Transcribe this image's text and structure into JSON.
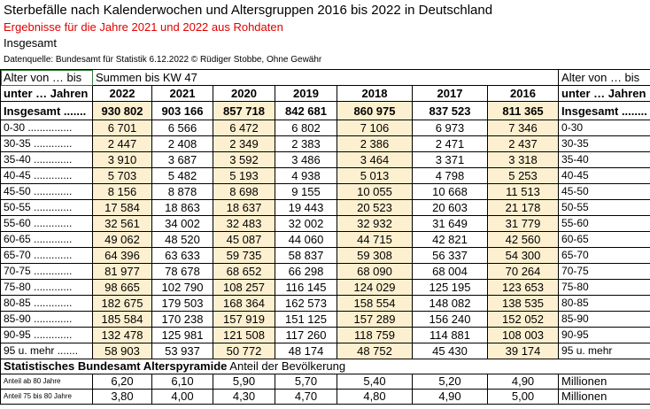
{
  "header": {
    "title": "Sterbefälle nach Kalenderwochen und Altersgruppen 2016 bis 2022 in Deutschland",
    "subtitle": "Ergebnisse für die Jahre 2021 und 2022 aus Rohdaten",
    "scope": "Insgesamt",
    "source": "Datenquelle: Bundesamt für Statistik 6.12.2022 © Rüdiger Stobbe, Ohne Gewähr"
  },
  "table": {
    "left_header": [
      "Alter von … bis",
      "unter … Jahren"
    ],
    "span_header": "Summen bis KW 47",
    "right_header": [
      "Alter von … bis",
      "unter … Jahren"
    ],
    "years": [
      "2022",
      "2021",
      "2020",
      "2019",
      "2018",
      "2017",
      "2016"
    ],
    "total_label": "Insgesamt .......",
    "right_total_label": "Insgesamt ........",
    "totals": [
      "930 802",
      "903 166",
      "857 718",
      "842 681",
      "860 975",
      "837 523",
      "811 365"
    ],
    "rows": [
      {
        "label": "0-30 ...............",
        "right_label": "0-30",
        "values": [
          "6 701",
          "6 566",
          "6 472",
          "6 802",
          "7 106",
          "6 973",
          "7 346"
        ]
      },
      {
        "label": "30-35 .............",
        "right_label": "30-35",
        "values": [
          "2 447",
          "2 408",
          "2 349",
          "2 383",
          "2 386",
          "2 471",
          "2 437"
        ]
      },
      {
        "label": "35-40 .............",
        "right_label": "35-40",
        "values": [
          "3 910",
          "3 687",
          "3 592",
          "3 486",
          "3 464",
          "3 371",
          "3 318"
        ]
      },
      {
        "label": "40-45 .............",
        "right_label": "40-45",
        "values": [
          "5 703",
          "5 482",
          "5 193",
          "4 938",
          "5 013",
          "4 798",
          "5 253"
        ]
      },
      {
        "label": "45-50 .............",
        "right_label": "45-50",
        "values": [
          "8 156",
          "8 878",
          "8 698",
          "9 155",
          "10 055",
          "10 668",
          "11 513"
        ]
      },
      {
        "label": "50-55 .............",
        "right_label": "50-55",
        "values": [
          "17 584",
          "18 863",
          "18 637",
          "19 443",
          "20 523",
          "20 603",
          "21 178"
        ]
      },
      {
        "label": "55-60 .............",
        "right_label": "55-60",
        "values": [
          "32 561",
          "34 002",
          "32 483",
          "32 002",
          "32 932",
          "31 649",
          "31 779"
        ]
      },
      {
        "label": "60-65 .............",
        "right_label": "60-65",
        "values": [
          "49 062",
          "48 520",
          "45 087",
          "44 060",
          "44 715",
          "42 821",
          "42 560"
        ]
      },
      {
        "label": "65-70 .............",
        "right_label": "65-70",
        "values": [
          "64 396",
          "63 633",
          "59 735",
          "58 837",
          "59 308",
          "56 337",
          "54 300"
        ]
      },
      {
        "label": "70-75 .............",
        "right_label": "70-75",
        "values": [
          "81 977",
          "78 678",
          "68 652",
          "66 298",
          "68 090",
          "68 004",
          "70 264"
        ]
      },
      {
        "label": "75-80 .............",
        "right_label": "75-80",
        "values": [
          "98 665",
          "102 790",
          "108 257",
          "116 145",
          "124 029",
          "125 195",
          "123 653"
        ]
      },
      {
        "label": "80-85 .............",
        "right_label": "80-85",
        "values": [
          "182 675",
          "179 503",
          "168 364",
          "162 573",
          "158 554",
          "148 082",
          "138 535"
        ]
      },
      {
        "label": "85-90 .............",
        "right_label": "85-90",
        "values": [
          "185 584",
          "170 238",
          "157 919",
          "151 125",
          "157 289",
          "156 240",
          "152 052"
        ]
      },
      {
        "label": "90-95 .............",
        "right_label": "90-95",
        "values": [
          "132 478",
          "125 981",
          "121 508",
          "117 260",
          "118 759",
          "114 881",
          "108 003"
        ]
      },
      {
        "label": "95 u. mehr .......",
        "right_label": "95 u. mehr",
        "values": [
          "58 903",
          "53 937",
          "50 772",
          "48 174",
          "48 752",
          "45 430",
          "39 174"
        ]
      }
    ]
  },
  "pyramid": {
    "title_bold": "Statistisches Bundesamt Alterspyramide",
    "title_rest": "Anteil der Bevölkerung",
    "rows": [
      {
        "label": "Anteil ab 80 Jahre",
        "values": [
          "6,20",
          "6,10",
          "5,90",
          "5,70",
          "5,40",
          "5,20",
          "4,90"
        ],
        "unit": "Millionen"
      },
      {
        "label": "Anteil 75 bis 80 Jahre",
        "values": [
          "3,80",
          "4,00",
          "4,30",
          "4,70",
          "4,80",
          "4,90",
          "5,00"
        ],
        "unit": "Millionen"
      }
    ]
  }
}
